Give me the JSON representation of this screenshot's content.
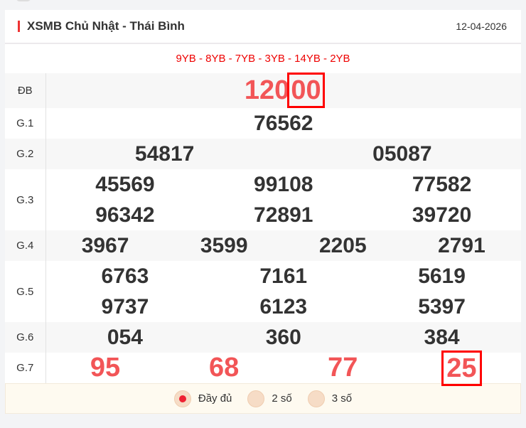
{
  "header": {
    "title": "XSMB Chủ Nhật - Thái Bình",
    "date": "12-04-2026"
  },
  "codes": "9YB - 8YB - 7YB - 3YB - 14YB - 2YB",
  "prizes": [
    {
      "label": "ĐB",
      "cols": 1,
      "numbers": [
        "12000"
      ],
      "highlight_last2": true
    },
    {
      "label": "G.1",
      "cols": 1,
      "numbers": [
        "76562"
      ]
    },
    {
      "label": "G.2",
      "cols": 2,
      "numbers": [
        "54817",
        "05087"
      ]
    },
    {
      "label": "G.3",
      "cols": 3,
      "numbers": [
        "45569",
        "99108",
        "77582",
        "96342",
        "72891",
        "39720"
      ]
    },
    {
      "label": "G.4",
      "cols": 4,
      "numbers": [
        "3967",
        "3599",
        "2205",
        "2791"
      ]
    },
    {
      "label": "G.5",
      "cols": 3,
      "numbers": [
        "6763",
        "7161",
        "5619",
        "9737",
        "6123",
        "5397"
      ]
    },
    {
      "label": "G.6",
      "cols": 3,
      "numbers": [
        "054",
        "360",
        "384"
      ]
    },
    {
      "label": "G.7",
      "cols": 4,
      "numbers": [
        "95",
        "68",
        "77",
        "25"
      ],
      "highlighted": "25"
    }
  ],
  "options": [
    {
      "label": "Đầy đủ",
      "selected": true
    },
    {
      "label": "2 số",
      "selected": false
    },
    {
      "label": "3 số",
      "selected": false
    }
  ],
  "colors": {
    "accent": "#f25557",
    "highlight": "#ff0000"
  }
}
